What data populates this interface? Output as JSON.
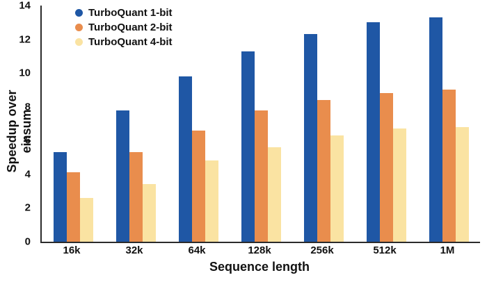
{
  "chart_data": {
    "type": "bar",
    "title": "",
    "xlabel": "Sequence length",
    "ylabel": "Speedup over einsum",
    "categories": [
      "16k",
      "32k",
      "64k",
      "128k",
      "256k",
      "512k",
      "1M"
    ],
    "series": [
      {
        "name": "TurboQuant 1-bit",
        "color": "#1f57a5",
        "values": [
          5.3,
          7.8,
          9.8,
          11.3,
          12.3,
          13.0,
          13.3
        ]
      },
      {
        "name": "TurboQuant 2-bit",
        "color": "#e98d4d",
        "values": [
          4.1,
          5.3,
          6.6,
          7.8,
          8.4,
          8.8,
          9.0
        ]
      },
      {
        "name": "TurboQuant 4-bit",
        "color": "#fae3a2",
        "values": [
          2.6,
          3.4,
          4.8,
          5.6,
          6.3,
          6.7,
          6.8
        ]
      }
    ],
    "ylim": [
      0,
      14
    ],
    "yticks": [
      0,
      2,
      4,
      6,
      8,
      10,
      12,
      14
    ],
    "grid": false,
    "legend_position": "upper-left"
  }
}
